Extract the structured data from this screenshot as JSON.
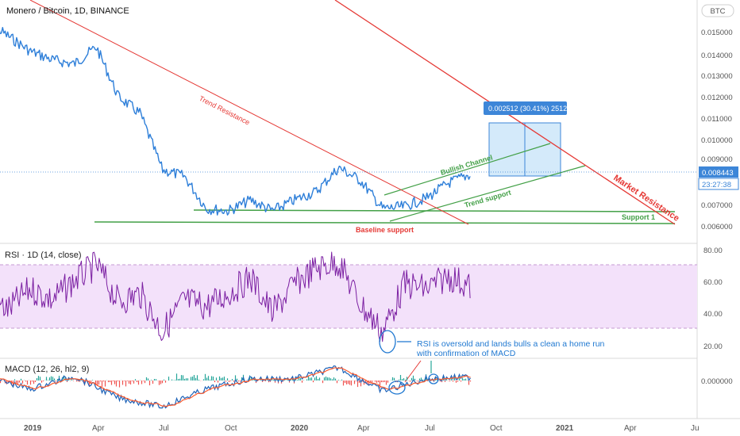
{
  "header": {
    "title": "Monero / Bitcoin, 1D, BINANCE",
    "currency": "BTC"
  },
  "colors": {
    "price": "#2e7fd9",
    "rsi": "#7b1fa2",
    "rsi_band": "#f3e1fa",
    "resistance": "#e53935",
    "support": "#43a047",
    "macd": "#1e63b8",
    "signal": "#ff5b2e",
    "hist_up": "#26a69a",
    "hist_down": "#ef5350",
    "annotation": "#1f78d1",
    "range_box": "#9fd0f5",
    "last_price_bg": "#3d86d8"
  },
  "price_axis": {
    "ticks": [
      "0.015000",
      "0.014000",
      "0.013000",
      "0.012000",
      "0.011000",
      "0.010000",
      "0.009000",
      "0.007000",
      "0.006000"
    ],
    "last_price": "0.008443",
    "countdown": "23:27:38"
  },
  "rsi_panel": {
    "title": "RSI · 1D (14, close)",
    "ticks": [
      "80.00",
      "60.00",
      "40.00",
      "20.00"
    ],
    "upper": 70,
    "lower": 30
  },
  "macd_panel": {
    "title": "MACD (12, 26, hl2, 9)",
    "ticks": [
      "0.000000"
    ]
  },
  "time_axis": {
    "labels": [
      "2019",
      "Apr",
      "Jul",
      "Oct",
      "2020",
      "Apr",
      "Jul",
      "Oct",
      "2021",
      "Apr",
      "Ju"
    ]
  },
  "annotations": {
    "trend_resistance": "Trend Resistance",
    "market_resistance": "Market Resistance",
    "bullish_channel": "Bullish Channel",
    "trend_support": "Trend support",
    "support_1": "Support 1",
    "baseline_support": "Baseline support",
    "measure": "0.002512 (30.41%) 2512",
    "rsi_note_line1": "RSI is oversold and lands bulls a clean a home run",
    "rsi_note_line2": "with confirmation of MACD"
  },
  "chart_data": [
    {
      "type": "line",
      "title": "Monero / Bitcoin, 1D, BINANCE",
      "x_range": [
        "2018-11",
        "2020-09"
      ],
      "ylim": [
        0.0055,
        0.0165
      ],
      "series": [
        {
          "points": [
            [
              "2018-11",
              0.0155
            ],
            [
              "2018-12",
              0.0148
            ],
            [
              "2019-01",
              0.0141
            ],
            [
              "2019-02",
              0.0137
            ],
            [
              "2019-03",
              0.0135
            ],
            [
              "2019-04",
              0.0143
            ],
            [
              "2019-05",
              0.012
            ],
            [
              "2019-06",
              0.0112
            ],
            [
              "2019-07",
              0.0086
            ],
            [
              "2019-08",
              0.0083
            ],
            [
              "2019-09",
              0.0068
            ],
            [
              "2019-10",
              0.0067
            ],
            [
              "2019-11",
              0.0072
            ],
            [
              "2019-12",
              0.0067
            ],
            [
              "2020-01",
              0.0072
            ],
            [
              "2020-02",
              0.0076
            ],
            [
              "2020-03",
              0.0087
            ],
            [
              "2020-04",
              0.0081
            ],
            [
              "2020-05",
              0.0068
            ],
            [
              "2020-06",
              0.0069
            ],
            [
              "2020-07",
              0.0073
            ],
            [
              "2020-08",
              0.008
            ],
            [
              "2020-09",
              0.0084
            ]
          ]
        }
      ]
    },
    {
      "type": "line",
      "title": "RSI · 1D (14, close)",
      "ylim": [
        15,
        85
      ],
      "series": [
        {
          "points": [
            [
              "2018-11",
              50
            ],
            [
              "2018-12",
              42
            ],
            [
              "2019-01",
              55
            ],
            [
              "2019-02",
              48
            ],
            [
              "2019-03",
              60
            ],
            [
              "2019-04",
              70
            ],
            [
              "2019-05",
              47
            ],
            [
              "2019-06",
              52
            ],
            [
              "2019-07",
              28
            ],
            [
              "2019-08",
              48
            ],
            [
              "2019-09",
              44
            ],
            [
              "2019-10",
              52
            ],
            [
              "2019-11",
              62
            ],
            [
              "2019-12",
              40
            ],
            [
              "2020-01",
              58
            ],
            [
              "2020-02",
              68
            ],
            [
              "2020-03",
              72
            ],
            [
              "2020-04",
              45
            ],
            [
              "2020-05",
              28
            ],
            [
              "2020-06",
              58
            ],
            [
              "2020-07",
              55
            ],
            [
              "2020-08",
              63
            ],
            [
              "2020-09",
              56
            ]
          ]
        }
      ]
    },
    {
      "type": "line",
      "title": "MACD (12, 26, hl2, 9)",
      "series": [
        {
          "points": [
            [
              "2018-11",
              5e-05
            ],
            [
              "2019-01",
              -0.0001
            ],
            [
              "2019-03",
              5e-05
            ],
            [
              "2019-05",
              -0.0002
            ],
            [
              "2019-07",
              -0.0003
            ],
            [
              "2019-09",
              -0.0001
            ],
            [
              "2019-11",
              2e-05
            ],
            [
              "2020-01",
              2e-05
            ],
            [
              "2020-03",
              0.00015
            ],
            [
              "2020-05",
              -0.00012
            ],
            [
              "2020-07",
              2e-05
            ],
            [
              "2020-09",
              4e-05
            ]
          ]
        }
      ]
    }
  ]
}
